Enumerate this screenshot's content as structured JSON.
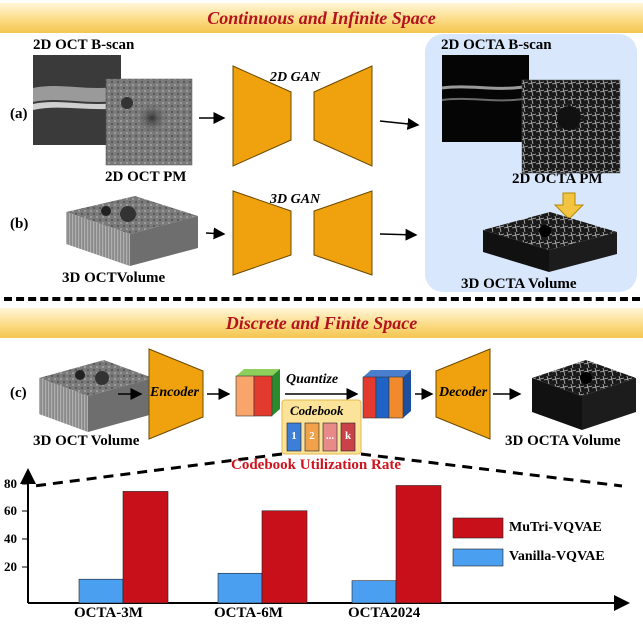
{
  "top_banner": {
    "title": "Continuous and Infinite Space"
  },
  "bottom_banner": {
    "title": "Discrete and Finite Space"
  },
  "panel_a": {
    "label": "(a)",
    "input_top_label": "2D OCT B-scan",
    "input_bottom_label": "2D OCT PM",
    "gan_label": "2D GAN",
    "output_top_label": "2D OCTA B-scan",
    "output_bottom_label": "2D OCTA PM"
  },
  "panel_b": {
    "label": "(b)",
    "gan_label": "3D GAN",
    "input_label": "3D OCTVolume",
    "output_label": "3D OCTA Volume"
  },
  "panel_c": {
    "label": "(c)",
    "encoder_label": "Encoder",
    "decoder_label": "Decoder",
    "quantize_label": "Quantize",
    "codebook_label": "Codebook",
    "codebook_entries": [
      "1",
      "2",
      "...",
      "k"
    ],
    "input_label": "3D OCT Volume",
    "output_label": "3D OCTA Volume",
    "utilization_label": "Codebook Utilization Rate"
  },
  "chart_data": {
    "type": "bar",
    "categories": [
      "OCTA-3M",
      "OCTA-6M",
      "OCTA2024"
    ],
    "series": [
      {
        "name": "Vanilla-VQVAE",
        "values": [
          16,
          20,
          15
        ],
        "color": "#4a9ff0"
      },
      {
        "name": "MuTri-VQVAE",
        "values": [
          75,
          62,
          79
        ],
        "color": "#c8101a"
      }
    ],
    "yticks": [
      "20",
      "40",
      "60",
      "80"
    ],
    "ylim": [
      0,
      88
    ],
    "legend_position": "right"
  }
}
